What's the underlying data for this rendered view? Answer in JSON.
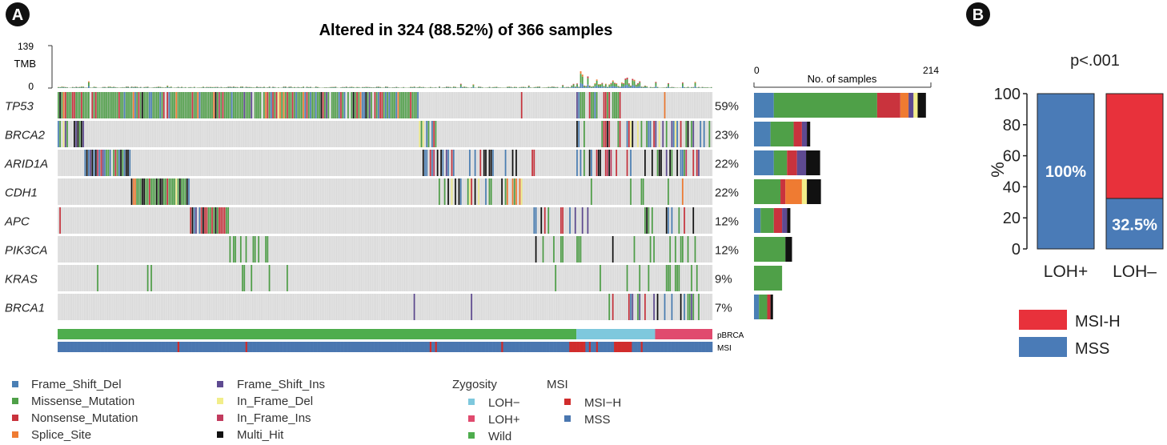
{
  "panel_a": {
    "badge": "A",
    "title": "Altered in 324 (88.52%) of 366 samples",
    "tmb": {
      "label": "TMB",
      "max_label": "139",
      "min_label": "0",
      "max": 139
    }
  },
  "panel_b": {
    "badge": "B",
    "pvalue": "p<.001",
    "y_title": "%"
  },
  "colors": {
    "Frame_Shift_Del": "#4a7fb5",
    "Missense_Mutation": "#4fa048",
    "Nonsense_Mutation": "#c9333d",
    "Splice_Site": "#ef7b32",
    "Frame_Shift_Ins": "#5e4a91",
    "In_Frame_Del": "#f2ee8a",
    "In_Frame_Ins": "#c23b5e",
    "Multi_Hit": "#111111",
    "LOH_minus": "#7ec8dd",
    "LOH_plus": "#e04a6e",
    "Wild": "#4ead4d",
    "MSI_H_oncoplot": "#d02c2c",
    "MSS_oncoplot": "#4a77b0",
    "MSI_H_bar": "#e8313b",
    "MSS_bar": "#4a7bb7",
    "cell_bg": "#d9d9d9"
  },
  "legend": {
    "variants_col1": [
      "Frame_Shift_Del",
      "Missense_Mutation",
      "Nonsense_Mutation",
      "Splice_Site"
    ],
    "variants_col2": [
      "Frame_Shift_Ins",
      "In_Frame_Del",
      "In_Frame_Ins",
      "Multi_Hit"
    ],
    "zygosity_title": "Zygosity",
    "zygosity": [
      "LOH−",
      "LOH+",
      "Wild"
    ],
    "msi_title": "MSI",
    "msi": [
      "MSI−H",
      "MSS"
    ],
    "b_legend": [
      "MSI-H",
      "MSS"
    ]
  },
  "chart_data": [
    {
      "type": "oncoplot",
      "title": "Altered in 324 (88.52%) of 366 samples",
      "n_samples": 366,
      "n_altered": 324,
      "genes": [
        "TP53",
        "BRCA2",
        "ARID1A",
        "CDH1",
        "APC",
        "PIK3CA",
        "KRAS",
        "BRCA1"
      ],
      "percent_labels": [
        "59%",
        "23%",
        "22%",
        "22%",
        "12%",
        "12%",
        "9%",
        "7%"
      ],
      "side_bar": {
        "xlabel": "No. of samples",
        "xlim": [
          0,
          214
        ],
        "tick_labels": [
          "0",
          "214"
        ],
        "categories": [
          "Frame_Shift_Del",
          "Missense_Mutation",
          "Nonsense_Mutation",
          "Splice_Site",
          "Frame_Shift_Ins",
          "In_Frame_Del",
          "Multi_Hit"
        ],
        "counts": {
          "TP53": [
            24,
            125,
            28,
            10,
            6,
            5,
            10
          ],
          "BRCA2": [
            20,
            28,
            10,
            0,
            6,
            0,
            4
          ],
          "ARID1A": [
            24,
            16,
            12,
            0,
            11,
            0,
            17
          ],
          "CDH1": [
            0,
            32,
            6,
            20,
            0,
            6,
            17
          ],
          "APC": [
            8,
            16,
            10,
            0,
            6,
            0,
            4
          ],
          "PIK3CA": [
            0,
            38,
            0,
            0,
            0,
            0,
            8
          ],
          "KRAS": [
            0,
            34,
            0,
            0,
            0,
            0,
            0
          ],
          "BRCA1": [
            6,
            10,
            4,
            0,
            0,
            0,
            3
          ]
        }
      },
      "annotation_tracks": {
        "pBRCA": {
          "label": "pBRCA",
          "segments": [
            {
              "class": "Wild",
              "count": 290
            },
            {
              "class": "LOH−",
              "count": 44
            },
            {
              "class": "LOH+",
              "count": 32
            }
          ]
        },
        "MSI": {
          "label": "MSI",
          "msi_h_sample_index": [
            67,
            105,
            208,
            211,
            248,
            286,
            287,
            288,
            289,
            290,
            291,
            292,
            293,
            294,
            297,
            301,
            311,
            312,
            313,
            314,
            315,
            316,
            317,
            318,
            319,
            320,
            326
          ]
        }
      }
    },
    {
      "type": "bar",
      "stacked": true,
      "title": "p<.001",
      "categories": [
        "LOH+",
        "LOH–"
      ],
      "series": [
        {
          "name": "MSS",
          "values": [
            100,
            32.5
          ]
        },
        {
          "name": "MSI-H",
          "values": [
            0,
            67.5
          ]
        }
      ],
      "data_labels": [
        "100%",
        "32.5%"
      ],
      "ylabel": "%",
      "ylim": [
        0,
        100
      ],
      "y_ticks": [
        "0",
        "20",
        "40",
        "60",
        "80",
        "100"
      ]
    }
  ]
}
